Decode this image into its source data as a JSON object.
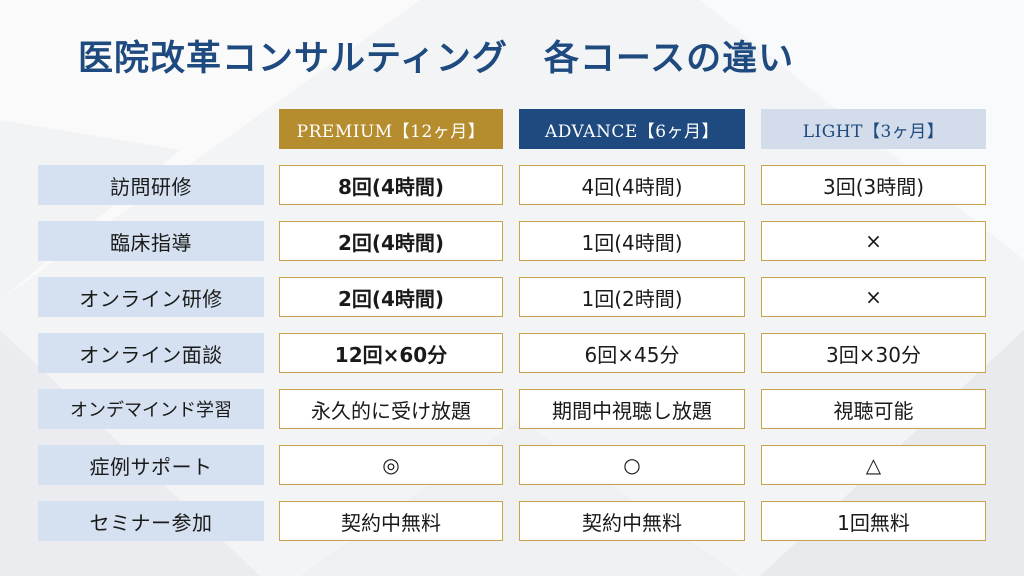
{
  "title": "医院改革コンサルティング　各コースの違い",
  "courses": [
    {
      "label": "PREMIUM【12ヶ月】",
      "color": "#b58d2e"
    },
    {
      "label": "ADVANCE【6ヶ月】",
      "color": "#1e4a7f"
    },
    {
      "label": "LIGHT【3ヶ月】",
      "color": "#d3dcea"
    }
  ],
  "rows": [
    {
      "label": "訪問研修",
      "values": [
        "8回(4時間)",
        "4回(4時間)",
        "3回(3時間)"
      ]
    },
    {
      "label": "臨床指導",
      "values": [
        "2回(4時間)",
        "1回(4時間)",
        "×"
      ]
    },
    {
      "label": "オンライン研修",
      "values": [
        "2回(4時間)",
        "1回(2時間)",
        "×"
      ]
    },
    {
      "label": "オンライン面談",
      "values": [
        "12回×60分",
        "6回×45分",
        "3回×30分"
      ]
    },
    {
      "label": "オンデマインド学習",
      "values": [
        "永久的に受け放題",
        "期間中視聴し放題",
        "視聴可能"
      ]
    },
    {
      "label": "症例サポート",
      "values": [
        "◎",
        "○",
        "△"
      ]
    },
    {
      "label": "セミナー参加",
      "values": [
        "契約中無料",
        "契約中無料",
        "1回無料"
      ]
    }
  ]
}
